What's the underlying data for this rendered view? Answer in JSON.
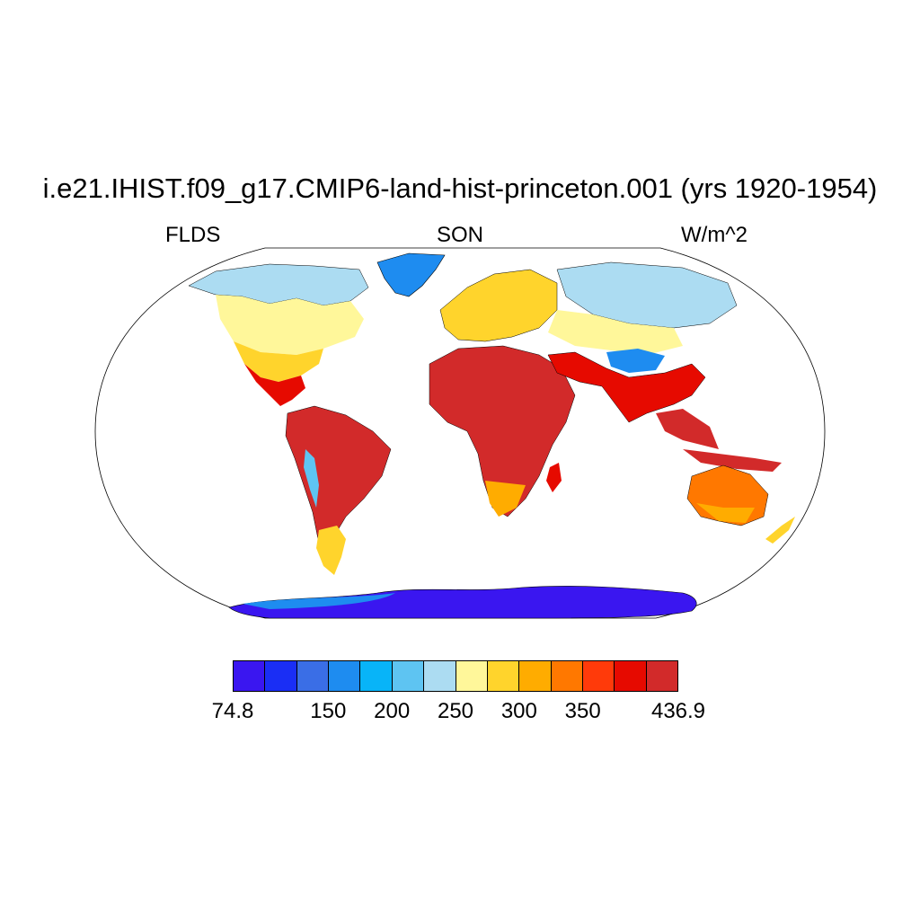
{
  "header": {
    "title": "i.e21.IHIST.f09_g17.CMIP6-land-hist-princeton.001 (yrs 1920-1954)",
    "left": "FLDS",
    "center": "SON",
    "right": "W/m^2"
  },
  "colorbar": {
    "colors": [
      "#3a16f0",
      "#1a2ef5",
      "#3a6ee6",
      "#1e8cf0",
      "#08b4f8",
      "#5ec4f2",
      "#acdcf2",
      "#fff79a",
      "#ffd42c",
      "#ffac00",
      "#ff7800",
      "#ff3a0a",
      "#e60a00",
      "#d22a2a"
    ],
    "labels": [
      {
        "text": "74.8",
        "index": 0
      },
      {
        "text": "150",
        "index": 3
      },
      {
        "text": "200",
        "index": 5
      },
      {
        "text": "250",
        "index": 7
      },
      {
        "text": "300",
        "index": 9
      },
      {
        "text": "350",
        "index": 11
      },
      {
        "text": "436.9",
        "index": 14
      }
    ]
  }
}
